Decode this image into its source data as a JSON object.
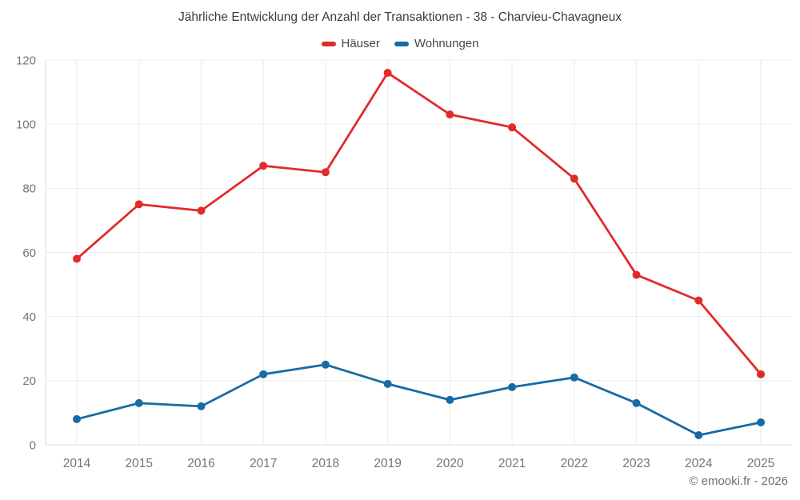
{
  "title": "Jährliche Entwicklung der Anzahl der Transaktionen - 38 - Charvieu-Chavagneux",
  "footer": {
    "copyright": "© emooki.fr - 2026"
  },
  "colors": {
    "haeuser": "#e12b2b",
    "wohnungen": "#176ba3",
    "grid": "#ebebeb",
    "axis": "#dedede",
    "tick_text": "#757575"
  },
  "chart_data": {
    "type": "line",
    "title": "Jährliche Entwicklung der Anzahl der Transaktionen - 38 - Charvieu-Chavagneux",
    "categories": [
      "2014",
      "2015",
      "2016",
      "2017",
      "2018",
      "2019",
      "2020",
      "2021",
      "2022",
      "2023",
      "2024",
      "2025"
    ],
    "series": [
      {
        "name": "Häuser",
        "color": "#e12b2b",
        "values": [
          58,
          75,
          73,
          87,
          85,
          116,
          103,
          99,
          83,
          53,
          45,
          22
        ]
      },
      {
        "name": "Wohnungen",
        "color": "#176ba3",
        "values": [
          8,
          13,
          12,
          22,
          25,
          19,
          14,
          18,
          21,
          13,
          3,
          7
        ]
      }
    ],
    "xlabel": "",
    "ylabel": "",
    "ylim": [
      0,
      120
    ],
    "yticks": [
      0,
      20,
      40,
      60,
      80,
      100,
      120
    ],
    "grid": true,
    "legend_position": "top"
  }
}
